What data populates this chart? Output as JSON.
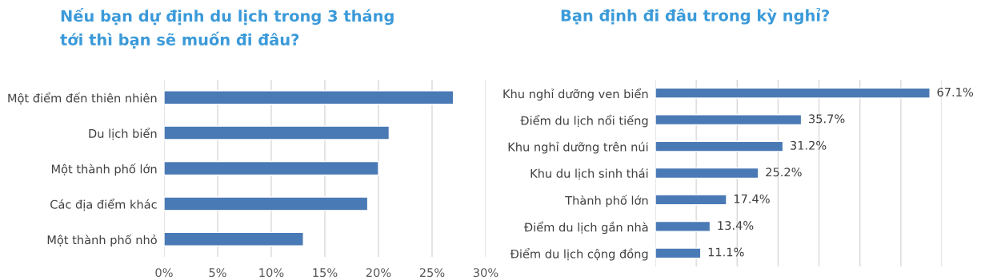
{
  "chart_data": [
    {
      "type": "bar",
      "orientation": "horizontal",
      "title": "Nếu bạn dự định du lịch trong 3 tháng\ntới thì bạn sẽ muốn đi đâu?",
      "categories": [
        "Một điểm đến thiên nhiên",
        "Du lịch biển",
        "Một thành phố lớn",
        "Các địa điểm khác",
        "Một thành phố nhỏ"
      ],
      "values": [
        27,
        21,
        20,
        19,
        13
      ],
      "color": "#4a7ab5",
      "xlim": [
        0,
        30
      ],
      "xticks": [
        {
          "value": 0,
          "label": "0%"
        },
        {
          "value": 5,
          "label": "5%"
        },
        {
          "value": 10,
          "label": "10%"
        },
        {
          "value": 15,
          "label": "15%"
        },
        {
          "value": 20,
          "label": "20%"
        },
        {
          "value": 25,
          "label": "25%"
        },
        {
          "value": 30,
          "label": "30%"
        }
      ],
      "grid": "x"
    },
    {
      "type": "bar",
      "orientation": "horizontal",
      "title": "Bạn định đi đâu trong kỳ nghỉ?",
      "categories": [
        "Khu nghỉ dưỡng ven biển",
        "Điểm du lịch nổi tiếng",
        "Khu nghỉ dưỡng trên núi",
        "Khu du lịch sinh thái",
        "Thành phố lớn",
        "Điểm du lịch gần nhà",
        "Điểm du lịch cộng đồng"
      ],
      "values": [
        67.1,
        35.7,
        31.2,
        25.2,
        17.4,
        13.4,
        11.1
      ],
      "color": "#4a7ab5",
      "value_labels": [
        "67.1%",
        "35.7%",
        "31.2%",
        "25.2%",
        "17.4%",
        "13.4%",
        "11.1%"
      ],
      "xlim": [
        0,
        70
      ],
      "xticks": [
        {
          "value": 0,
          "label": null
        },
        {
          "value": 10,
          "label": null
        },
        {
          "value": 20,
          "label": null
        },
        {
          "value": 30,
          "label": null
        },
        {
          "value": 40,
          "label": null
        },
        {
          "value": 50,
          "label": null
        },
        {
          "value": 60,
          "label": null
        },
        {
          "value": 70,
          "label": null
        }
      ],
      "tick_labels": "y",
      "grid": "x"
    }
  ]
}
